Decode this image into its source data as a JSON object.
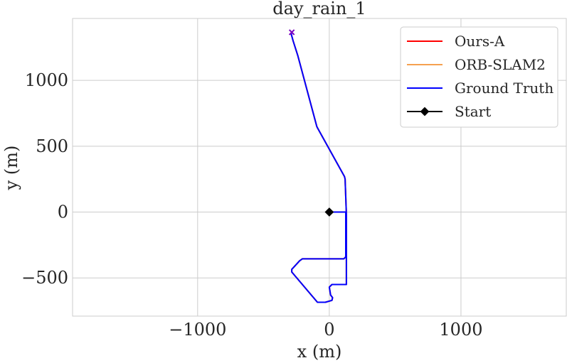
{
  "chart_data": {
    "type": "line",
    "title": "day_rain_1",
    "xlabel": "x (m)",
    "ylabel": "y (m)",
    "xlim": [
      -1950,
      1800
    ],
    "ylim": [
      -790,
      1470
    ],
    "xticks": [
      -1000,
      0,
      1000
    ],
    "xtick_labels": [
      "−1000",
      "0",
      "1000"
    ],
    "yticks": [
      -500,
      0,
      500,
      1000
    ],
    "ytick_labels": [
      "−500",
      "0",
      "500",
      "1000"
    ],
    "grid": true,
    "legend_position": "top-right",
    "series": [
      {
        "name": "Ours-A",
        "color": "#ff0000",
        "points": [
          [
            0,
            0
          ],
          [
            125,
            0
          ],
          [
            125,
            -340
          ],
          [
            110,
            -355
          ],
          [
            -205,
            -355
          ],
          [
            -225,
            -370
          ],
          [
            -285,
            -435
          ],
          [
            -285,
            -455
          ],
          [
            -90,
            -685
          ],
          [
            -30,
            -685
          ],
          [
            20,
            -670
          ],
          [
            25,
            -650
          ],
          [
            10,
            -630
          ],
          [
            0,
            -570
          ],
          [
            20,
            -550
          ],
          [
            130,
            -550
          ],
          [
            130,
            -20
          ],
          [
            120,
            250
          ],
          [
            115,
            270
          ],
          [
            -90,
            640
          ],
          [
            -95,
            650
          ],
          [
            -240,
            1190
          ],
          [
            -275,
            1300
          ],
          [
            -290,
            1355
          ],
          [
            -285,
            1365
          ]
        ]
      },
      {
        "name": "ORB-SLAM2",
        "color": "#f5a050",
        "points": [
          [
            0,
            0
          ],
          [
            125,
            0
          ],
          [
            125,
            -340
          ],
          [
            110,
            -355
          ],
          [
            -205,
            -355
          ],
          [
            -225,
            -370
          ],
          [
            -285,
            -435
          ],
          [
            -285,
            -455
          ],
          [
            -90,
            -685
          ],
          [
            -30,
            -685
          ],
          [
            20,
            -670
          ],
          [
            25,
            -650
          ],
          [
            10,
            -630
          ],
          [
            0,
            -570
          ],
          [
            20,
            -550
          ],
          [
            130,
            -550
          ],
          [
            130,
            -20
          ],
          [
            120,
            250
          ],
          [
            115,
            270
          ],
          [
            -90,
            640
          ],
          [
            -95,
            650
          ],
          [
            -240,
            1190
          ],
          [
            -275,
            1300
          ],
          [
            -290,
            1355
          ],
          [
            -285,
            1365
          ]
        ]
      },
      {
        "name": "Ground Truth",
        "color": "#0000ff",
        "points": [
          [
            0,
            0
          ],
          [
            125,
            0
          ],
          [
            125,
            -340
          ],
          [
            110,
            -355
          ],
          [
            -205,
            -355
          ],
          [
            -225,
            -370
          ],
          [
            -285,
            -435
          ],
          [
            -285,
            -455
          ],
          [
            -90,
            -685
          ],
          [
            -30,
            -685
          ],
          [
            20,
            -670
          ],
          [
            25,
            -650
          ],
          [
            10,
            -630
          ],
          [
            0,
            -570
          ],
          [
            20,
            -550
          ],
          [
            130,
            -550
          ],
          [
            130,
            -20
          ],
          [
            120,
            250
          ],
          [
            115,
            270
          ],
          [
            -90,
            640
          ],
          [
            -95,
            650
          ],
          [
            -240,
            1190
          ],
          [
            -275,
            1300
          ],
          [
            -290,
            1355
          ],
          [
            -285,
            1365
          ]
        ]
      }
    ],
    "start": {
      "name": "Start",
      "color": "#000000",
      "point": [
        0,
        0
      ]
    },
    "end_marker_point": [
      -285,
      1365
    ]
  }
}
